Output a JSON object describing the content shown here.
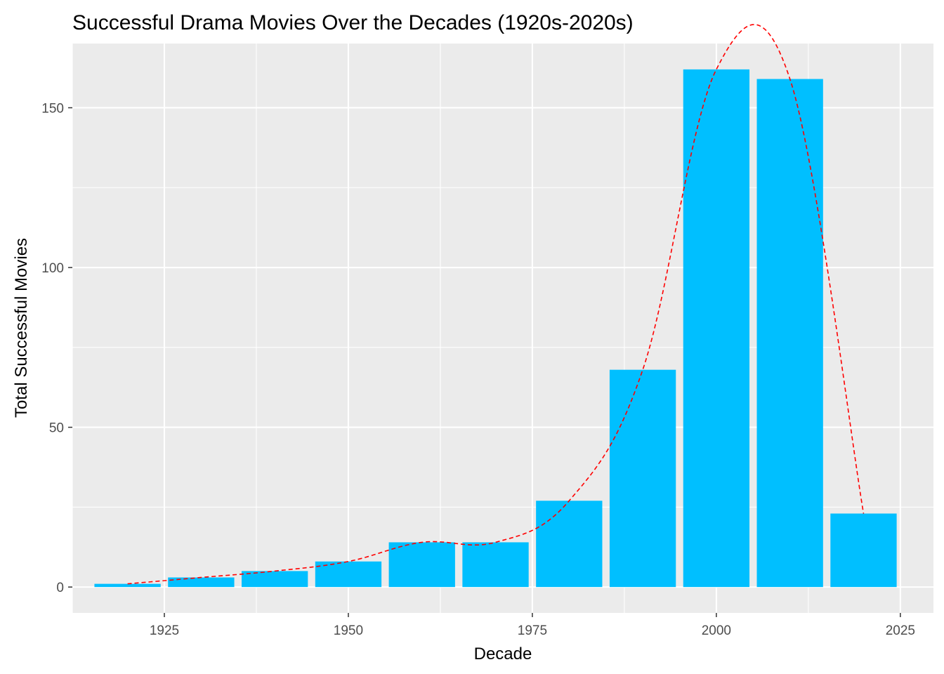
{
  "chart_data": {
    "type": "bar",
    "title": "Successful Drama Movies Over the Decades (1920s-2020s)",
    "xlabel": "Decade",
    "ylabel": "Total Successful Movies",
    "x": [
      1920,
      1930,
      1940,
      1950,
      1960,
      1970,
      1980,
      1990,
      2000,
      2010,
      2020
    ],
    "values": [
      1,
      3,
      5,
      8,
      14,
      14,
      27,
      68,
      162,
      159,
      23
    ],
    "bar_color": "#00BFFF",
    "trend_line": {
      "style": "dashed",
      "color": "#FF0000",
      "smoothed": true
    },
    "xlim": [
      1912.5,
      2029.5
    ],
    "ylim": [
      -8.1,
      170.1
    ],
    "x_ticks": [
      1925,
      1950,
      1975,
      2000,
      2025
    ],
    "y_ticks": [
      0,
      50,
      100,
      150
    ],
    "x_tick_labels": [
      "1925",
      "1950",
      "1975",
      "2000",
      "2025"
    ],
    "y_tick_labels": [
      "0",
      "50",
      "100",
      "150"
    ],
    "panel_background": "#EBEBEB",
    "grid_color": "#FFFFFF",
    "grid": true,
    "legend": "none"
  }
}
